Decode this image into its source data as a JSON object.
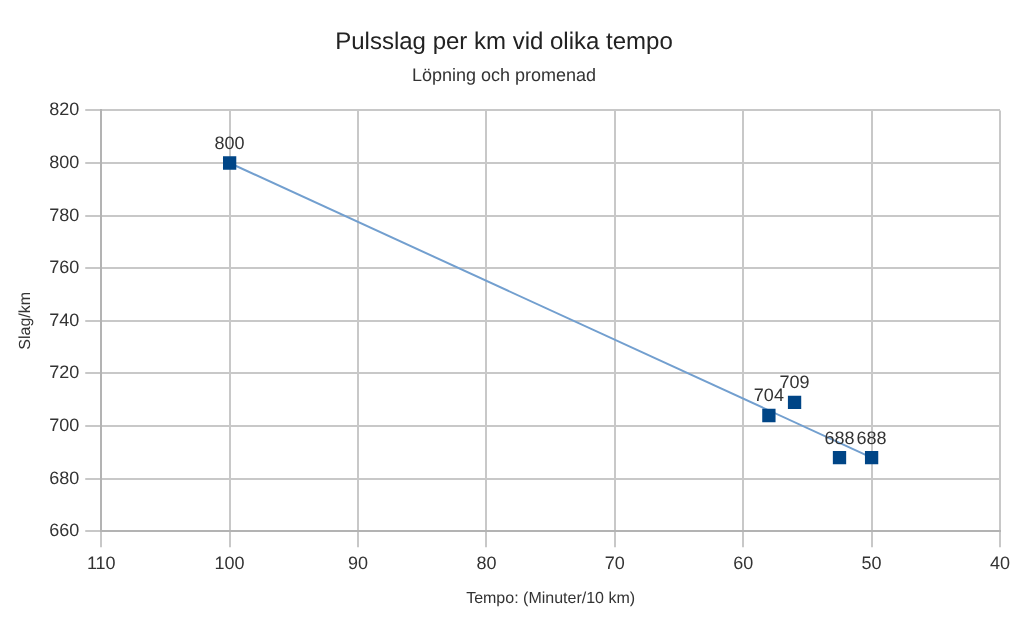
{
  "chart_data": {
    "type": "scatter",
    "title": "Pulsslag per km vid olika tempo",
    "subtitle": "Löpning och promenad",
    "xlabel": "Tempo: (Minuter/10 km)",
    "ylabel": "Slag/km",
    "x": [
      100,
      58,
      56,
      52.5,
      50
    ],
    "series": [
      {
        "color": "#004586",
        "values": [
          800,
          704,
          709,
          688,
          688
        ],
        "value_labels": [
          "800",
          "704",
          "709",
          "688",
          "688"
        ],
        "marker": "square"
      },
      {
        "type": "line",
        "color": "#729fcf",
        "x": [
          100,
          50
        ],
        "values": [
          800,
          688
        ],
        "marker": "none"
      }
    ],
    "xlim": [
      110,
      40
    ],
    "xticks": [
      110,
      100,
      90,
      80,
      70,
      60,
      50,
      40
    ],
    "ylim": [
      660,
      820
    ],
    "yticks": [
      660,
      680,
      700,
      720,
      740,
      760,
      780,
      800,
      820
    ],
    "grid": true,
    "legend": false
  }
}
